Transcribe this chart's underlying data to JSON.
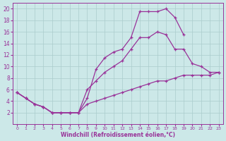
{
  "xlabel": "Windchill (Refroidissement éolien,°C)",
  "background_color": "#cce8e8",
  "grid_color": "#aacccc",
  "line_color": "#993399",
  "xlim": [
    -0.5,
    23.5
  ],
  "ylim": [
    0,
    21
  ],
  "xticks": [
    0,
    1,
    2,
    3,
    4,
    5,
    6,
    7,
    8,
    9,
    10,
    11,
    12,
    13,
    14,
    15,
    16,
    17,
    18,
    19,
    20,
    21,
    22,
    23
  ],
  "yticks": [
    2,
    4,
    6,
    8,
    10,
    12,
    14,
    16,
    18,
    20
  ],
  "line1_x": [
    0,
    1,
    2,
    3,
    4,
    5,
    6,
    7,
    8,
    9,
    10,
    11,
    12,
    13,
    14,
    15,
    16,
    17,
    18,
    19
  ],
  "line1_y": [
    5.5,
    4.5,
    3.5,
    3.0,
    2.0,
    2.0,
    2.0,
    2.0,
    4.5,
    9.5,
    11.5,
    12.5,
    13.0,
    15.0,
    19.5,
    19.5,
    19.5,
    20.0,
    18.5,
    15.5
  ],
  "line2_x": [
    0,
    1,
    2,
    3,
    4,
    5,
    6,
    7,
    8,
    9,
    10,
    11,
    12,
    13,
    14,
    15,
    16,
    17,
    18,
    19,
    20,
    21,
    22,
    23
  ],
  "line2_y": [
    5.5,
    4.5,
    3.5,
    3.0,
    2.0,
    2.0,
    2.0,
    2.0,
    6.0,
    7.5,
    9.0,
    10.0,
    11.0,
    13.0,
    15.0,
    15.0,
    16.0,
    15.5,
    13.0,
    13.0,
    10.5,
    10.0,
    9.0,
    9.0
  ],
  "line3_x": [
    0,
    1,
    2,
    3,
    4,
    5,
    6,
    7,
    8,
    9,
    10,
    11,
    12,
    13,
    14,
    15,
    16,
    17,
    18,
    19,
    20,
    21,
    22,
    23
  ],
  "line3_y": [
    5.5,
    4.5,
    3.5,
    3.0,
    2.0,
    2.0,
    2.0,
    2.0,
    3.5,
    4.0,
    4.5,
    5.0,
    5.5,
    6.0,
    6.5,
    7.0,
    7.5,
    7.5,
    8.0,
    8.5,
    8.5,
    8.5,
    8.5,
    9.0
  ],
  "marker": "+",
  "markersize": 3.5,
  "linewidth": 0.9
}
